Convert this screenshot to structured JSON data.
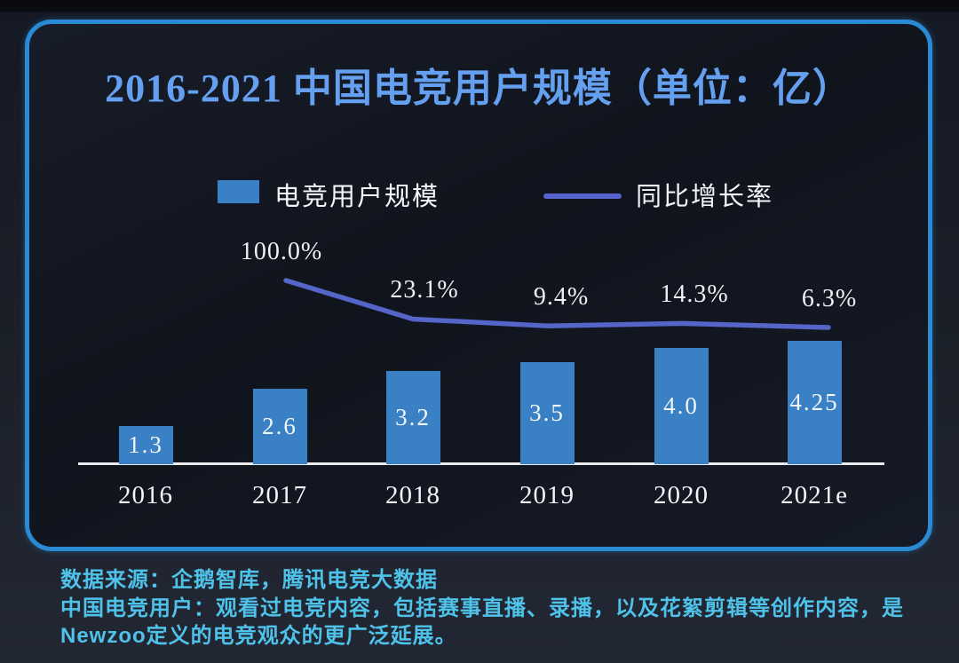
{
  "title": "2016-2021 中国电竞用户规模（单位：亿）",
  "legend": {
    "bar_label": "电竞用户规模",
    "line_label": "同比增长率"
  },
  "chart_data": {
    "type": "bar",
    "title": "2016-2021 中国电竞用户规模（单位：亿）",
    "unit": "亿",
    "categories": [
      "2016",
      "2017",
      "2018",
      "2019",
      "2020",
      "2021e"
    ],
    "series": [
      {
        "name": "电竞用户规模",
        "type": "bar",
        "values": [
          1.3,
          2.6,
          3.2,
          3.5,
          4.0,
          4.25
        ],
        "labels": [
          "1.3",
          "2.6",
          "3.2",
          "3.5",
          "4.0",
          "4.25"
        ],
        "color": "#3a80c4"
      },
      {
        "name": "同比增长率",
        "type": "line",
        "values": [
          null,
          100.0,
          23.1,
          9.4,
          14.3,
          6.3
        ],
        "labels": [
          "",
          "100.0%",
          "23.1%",
          "9.4%",
          "14.3%",
          "6.3%"
        ],
        "color": "#5565c8"
      }
    ],
    "legend_position": "top",
    "grid": false,
    "xlabel": "",
    "ylabel": ""
  },
  "footer": {
    "line1": "数据来源：企鹅智库，腾讯电竞大数据",
    "line2": "中国电竞用户：观看过电竞内容，包括赛事直播、录播，以及花絮剪辑等创作内容，是",
    "line3": "Newzoo定义的电竞观众的更广泛延展。"
  },
  "colors": {
    "bar": "#3a80c4",
    "line": "#5565c8",
    "title": "#64a0ef",
    "footer_text": "#4fc2e9",
    "card_border": "#2a8bd4",
    "axis": "#e9ebef"
  }
}
